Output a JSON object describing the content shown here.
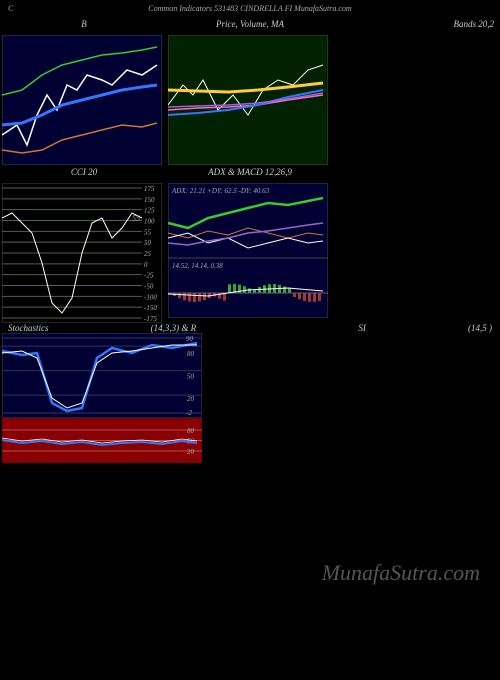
{
  "header": "Common Indicators 531483 CINDRELLA FI MunafaSutra.com",
  "watermark": "MunafaSutra.com",
  "panels": {
    "p1": {
      "title_left": "B",
      "bg": "#000033",
      "border": "#444444",
      "lines": [
        {
          "color": "#ffffff",
          "width": 1.5,
          "pts": [
            [
              0,
              100
            ],
            [
              15,
              90
            ],
            [
              25,
              110
            ],
            [
              35,
              80
            ],
            [
              45,
              60
            ],
            [
              55,
              75
            ],
            [
              65,
              50
            ],
            [
              75,
              55
            ],
            [
              85,
              40
            ],
            [
              100,
              45
            ],
            [
              110,
              50
            ],
            [
              125,
              35
            ],
            [
              140,
              40
            ],
            [
              155,
              30
            ]
          ]
        },
        {
          "color": "#3377ff",
          "width": 3,
          "pts": [
            [
              0,
              90
            ],
            [
              20,
              88
            ],
            [
              40,
              80
            ],
            [
              60,
              70
            ],
            [
              80,
              65
            ],
            [
              100,
              60
            ],
            [
              120,
              55
            ],
            [
              140,
              52
            ],
            [
              155,
              50
            ]
          ]
        },
        {
          "color": "#33cc33",
          "width": 1.5,
          "pts": [
            [
              0,
              60
            ],
            [
              20,
              55
            ],
            [
              40,
              40
            ],
            [
              60,
              30
            ],
            [
              80,
              25
            ],
            [
              100,
              20
            ],
            [
              120,
              18
            ],
            [
              140,
              15
            ],
            [
              155,
              12
            ]
          ]
        },
        {
          "color": "#cc7733",
          "width": 1.5,
          "pts": [
            [
              0,
              115
            ],
            [
              20,
              118
            ],
            [
              40,
              115
            ],
            [
              60,
              105
            ],
            [
              80,
              100
            ],
            [
              100,
              95
            ],
            [
              120,
              90
            ],
            [
              140,
              92
            ],
            [
              155,
              88
            ]
          ]
        }
      ]
    },
    "p2": {
      "title": "Price, Volume, MA",
      "bg": "#002200",
      "border": "#444444",
      "lines": [
        {
          "color": "#ffffff",
          "width": 1,
          "pts": [
            [
              0,
              70
            ],
            [
              15,
              50
            ],
            [
              25,
              60
            ],
            [
              35,
              45
            ],
            [
              50,
              75
            ],
            [
              65,
              60
            ],
            [
              80,
              80
            ],
            [
              95,
              55
            ],
            [
              110,
              45
            ],
            [
              125,
              50
            ],
            [
              140,
              35
            ],
            [
              155,
              30
            ]
          ]
        },
        {
          "color": "#ffcc33",
          "width": 3,
          "pts": [
            [
              0,
              55
            ],
            [
              30,
              56
            ],
            [
              60,
              57
            ],
            [
              90,
              55
            ],
            [
              120,
              52
            ],
            [
              155,
              48
            ]
          ]
        },
        {
          "color": "#ff66cc",
          "width": 1.5,
          "pts": [
            [
              0,
              75
            ],
            [
              30,
              73
            ],
            [
              60,
              72
            ],
            [
              90,
              70
            ],
            [
              120,
              65
            ],
            [
              155,
              60
            ]
          ]
        },
        {
          "color": "#3377ff",
          "width": 2,
          "pts": [
            [
              0,
              80
            ],
            [
              30,
              78
            ],
            [
              60,
              75
            ],
            [
              90,
              70
            ],
            [
              120,
              62
            ],
            [
              155,
              55
            ]
          ]
        },
        {
          "color": "#9966cc",
          "width": 1.5,
          "pts": [
            [
              0,
              72
            ],
            [
              30,
              71
            ],
            [
              60,
              70
            ],
            [
              90,
              68
            ],
            [
              120,
              64
            ],
            [
              155,
              58
            ]
          ]
        }
      ]
    },
    "p3": {
      "title": "Bands 20,2",
      "bg": "transparent"
    },
    "cci": {
      "title": "CCI 20",
      "bg": "#000000",
      "ticks": [
        175,
        150,
        125,
        100,
        55,
        50,
        25,
        0,
        -25,
        -50,
        -100,
        -150,
        -175
      ],
      "grid_color": "#556633",
      "line": {
        "color": "#ffffff",
        "width": 1,
        "pts": [
          [
            0,
            35
          ],
          [
            10,
            30
          ],
          [
            20,
            40
          ],
          [
            30,
            50
          ],
          [
            40,
            80
          ],
          [
            50,
            120
          ],
          [
            60,
            130
          ],
          [
            70,
            115
          ],
          [
            80,
            70
          ],
          [
            90,
            40
          ],
          [
            100,
            35
          ],
          [
            110,
            55
          ],
          [
            120,
            45
          ],
          [
            130,
            30
          ],
          [
            140,
            35
          ]
        ]
      },
      "annotation": "55"
    },
    "adx": {
      "title": "ADX  & MACD 12,26,9",
      "label": "ADX: 21.21 +DY: 62.5 -DY: 40.63",
      "bg": "#000033",
      "lines": [
        {
          "color": "#33cc33",
          "width": 2.5,
          "pts": [
            [
              0,
              40
            ],
            [
              20,
              45
            ],
            [
              40,
              35
            ],
            [
              60,
              30
            ],
            [
              80,
              25
            ],
            [
              100,
              20
            ],
            [
              120,
              22
            ],
            [
              140,
              18
            ],
            [
              155,
              15
            ]
          ]
        },
        {
          "color": "#cc7733",
          "width": 1,
          "pts": [
            [
              0,
              50
            ],
            [
              20,
              55
            ],
            [
              40,
              48
            ],
            [
              60,
              52
            ],
            [
              80,
              45
            ],
            [
              100,
              50
            ],
            [
              120,
              55
            ],
            [
              140,
              50
            ],
            [
              155,
              52
            ]
          ]
        },
        {
          "color": "#ffffff",
          "width": 1,
          "pts": [
            [
              0,
              55
            ],
            [
              20,
              50
            ],
            [
              40,
              60
            ],
            [
              60,
              55
            ],
            [
              80,
              65
            ],
            [
              100,
              60
            ],
            [
              120,
              55
            ],
            [
              140,
              60
            ],
            [
              155,
              58
            ]
          ]
        },
        {
          "color": "#9966cc",
          "width": 1.5,
          "pts": [
            [
              0,
              60
            ],
            [
              20,
              62
            ],
            [
              40,
              58
            ],
            [
              60,
              55
            ],
            [
              80,
              50
            ],
            [
              100,
              48
            ],
            [
              120,
              45
            ],
            [
              140,
              42
            ],
            [
              155,
              40
            ]
          ]
        }
      ],
      "macd_label": "14.52, 14.14, 0.38",
      "macd_bg": "#000033"
    },
    "stoch": {
      "title_l": "Stochastics",
      "title_r": "(14,3,3) & R",
      "rsi_l": "SI",
      "rsi_r": "(14,5                          )",
      "ticks": [
        90,
        80,
        50,
        20,
        -2
      ],
      "bg": "#000033",
      "border": "#444444",
      "lines": [
        {
          "color": "#3377ff",
          "width": 2.5,
          "pts": [
            [
              0,
              18
            ],
            [
              20,
              22
            ],
            [
              35,
              20
            ],
            [
              50,
              70
            ],
            [
              65,
              78
            ],
            [
              80,
              75
            ],
            [
              95,
              25
            ],
            [
              110,
              15
            ],
            [
              130,
              20
            ],
            [
              150,
              12
            ],
            [
              170,
              15
            ],
            [
              195,
              10
            ]
          ]
        },
        {
          "color": "#ffffff",
          "width": 1,
          "pts": [
            [
              0,
              20
            ],
            [
              20,
              18
            ],
            [
              35,
              25
            ],
            [
              50,
              65
            ],
            [
              65,
              75
            ],
            [
              80,
              70
            ],
            [
              95,
              30
            ],
            [
              110,
              20
            ],
            [
              130,
              18
            ],
            [
              150,
              15
            ],
            [
              170,
              12
            ],
            [
              195,
              12
            ]
          ]
        }
      ]
    },
    "stoch2": {
      "bg": "#880000",
      "ticks": [
        80,
        50,
        20
      ],
      "line": {
        "color": "#3377ff",
        "width": 2,
        "pts": [
          [
            0,
            22
          ],
          [
            20,
            25
          ],
          [
            40,
            23
          ],
          [
            60,
            26
          ],
          [
            80,
            24
          ],
          [
            100,
            27
          ],
          [
            120,
            25
          ],
          [
            140,
            24
          ],
          [
            160,
            26
          ],
          [
            180,
            23
          ],
          [
            195,
            25
          ]
        ]
      }
    }
  }
}
